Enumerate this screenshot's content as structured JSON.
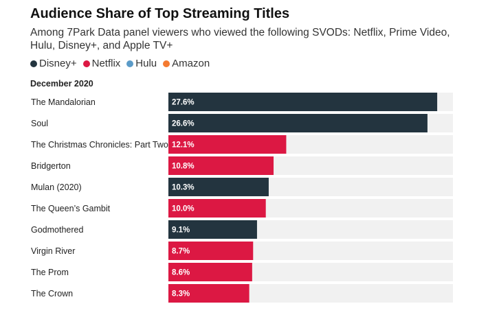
{
  "chart_data": {
    "type": "bar",
    "orientation": "horizontal",
    "title": "Audience Share of Top Streaming Titles",
    "subtitle": "Among 7Park Data panel viewers who viewed the following SVODs: Netflix, Prime Video, Hulu, Disney+, and Apple TV+",
    "section_label": "December 2020",
    "legend": [
      {
        "name": "Disney+",
        "color": "#23343f"
      },
      {
        "name": "Netflix",
        "color": "#dc1843"
      },
      {
        "name": "Hulu",
        "color": "#5b9bc8"
      },
      {
        "name": "Amazon",
        "color": "#f47a30"
      }
    ],
    "xlim": [
      0,
      30
    ],
    "track_color": "#f1f1f1",
    "bars": [
      {
        "category": "The Mandalorian",
        "value": 27.6,
        "label": "27.6%",
        "service": "Disney+"
      },
      {
        "category": "Soul",
        "value": 26.6,
        "label": "26.6%",
        "service": "Disney+"
      },
      {
        "category": "The Christmas Chronicles: Part Two",
        "value": 12.1,
        "label": "12.1%",
        "service": "Netflix"
      },
      {
        "category": "Bridgerton",
        "value": 10.8,
        "label": "10.8%",
        "service": "Netflix"
      },
      {
        "category": "Mulan (2020)",
        "value": 10.3,
        "label": "10.3%",
        "service": "Disney+"
      },
      {
        "category": "The Queen’s Gambit",
        "value": 10.0,
        "label": "10.0%",
        "service": "Netflix"
      },
      {
        "category": "Godmothered",
        "value": 9.1,
        "label": "9.1%",
        "service": "Disney+"
      },
      {
        "category": "Virgin River",
        "value": 8.7,
        "label": "8.7%",
        "service": "Netflix"
      },
      {
        "category": "The Prom",
        "value": 8.6,
        "label": "8.6%",
        "service": "Netflix"
      },
      {
        "category": "The Crown",
        "value": 8.3,
        "label": "8.3%",
        "service": "Netflix"
      }
    ]
  }
}
